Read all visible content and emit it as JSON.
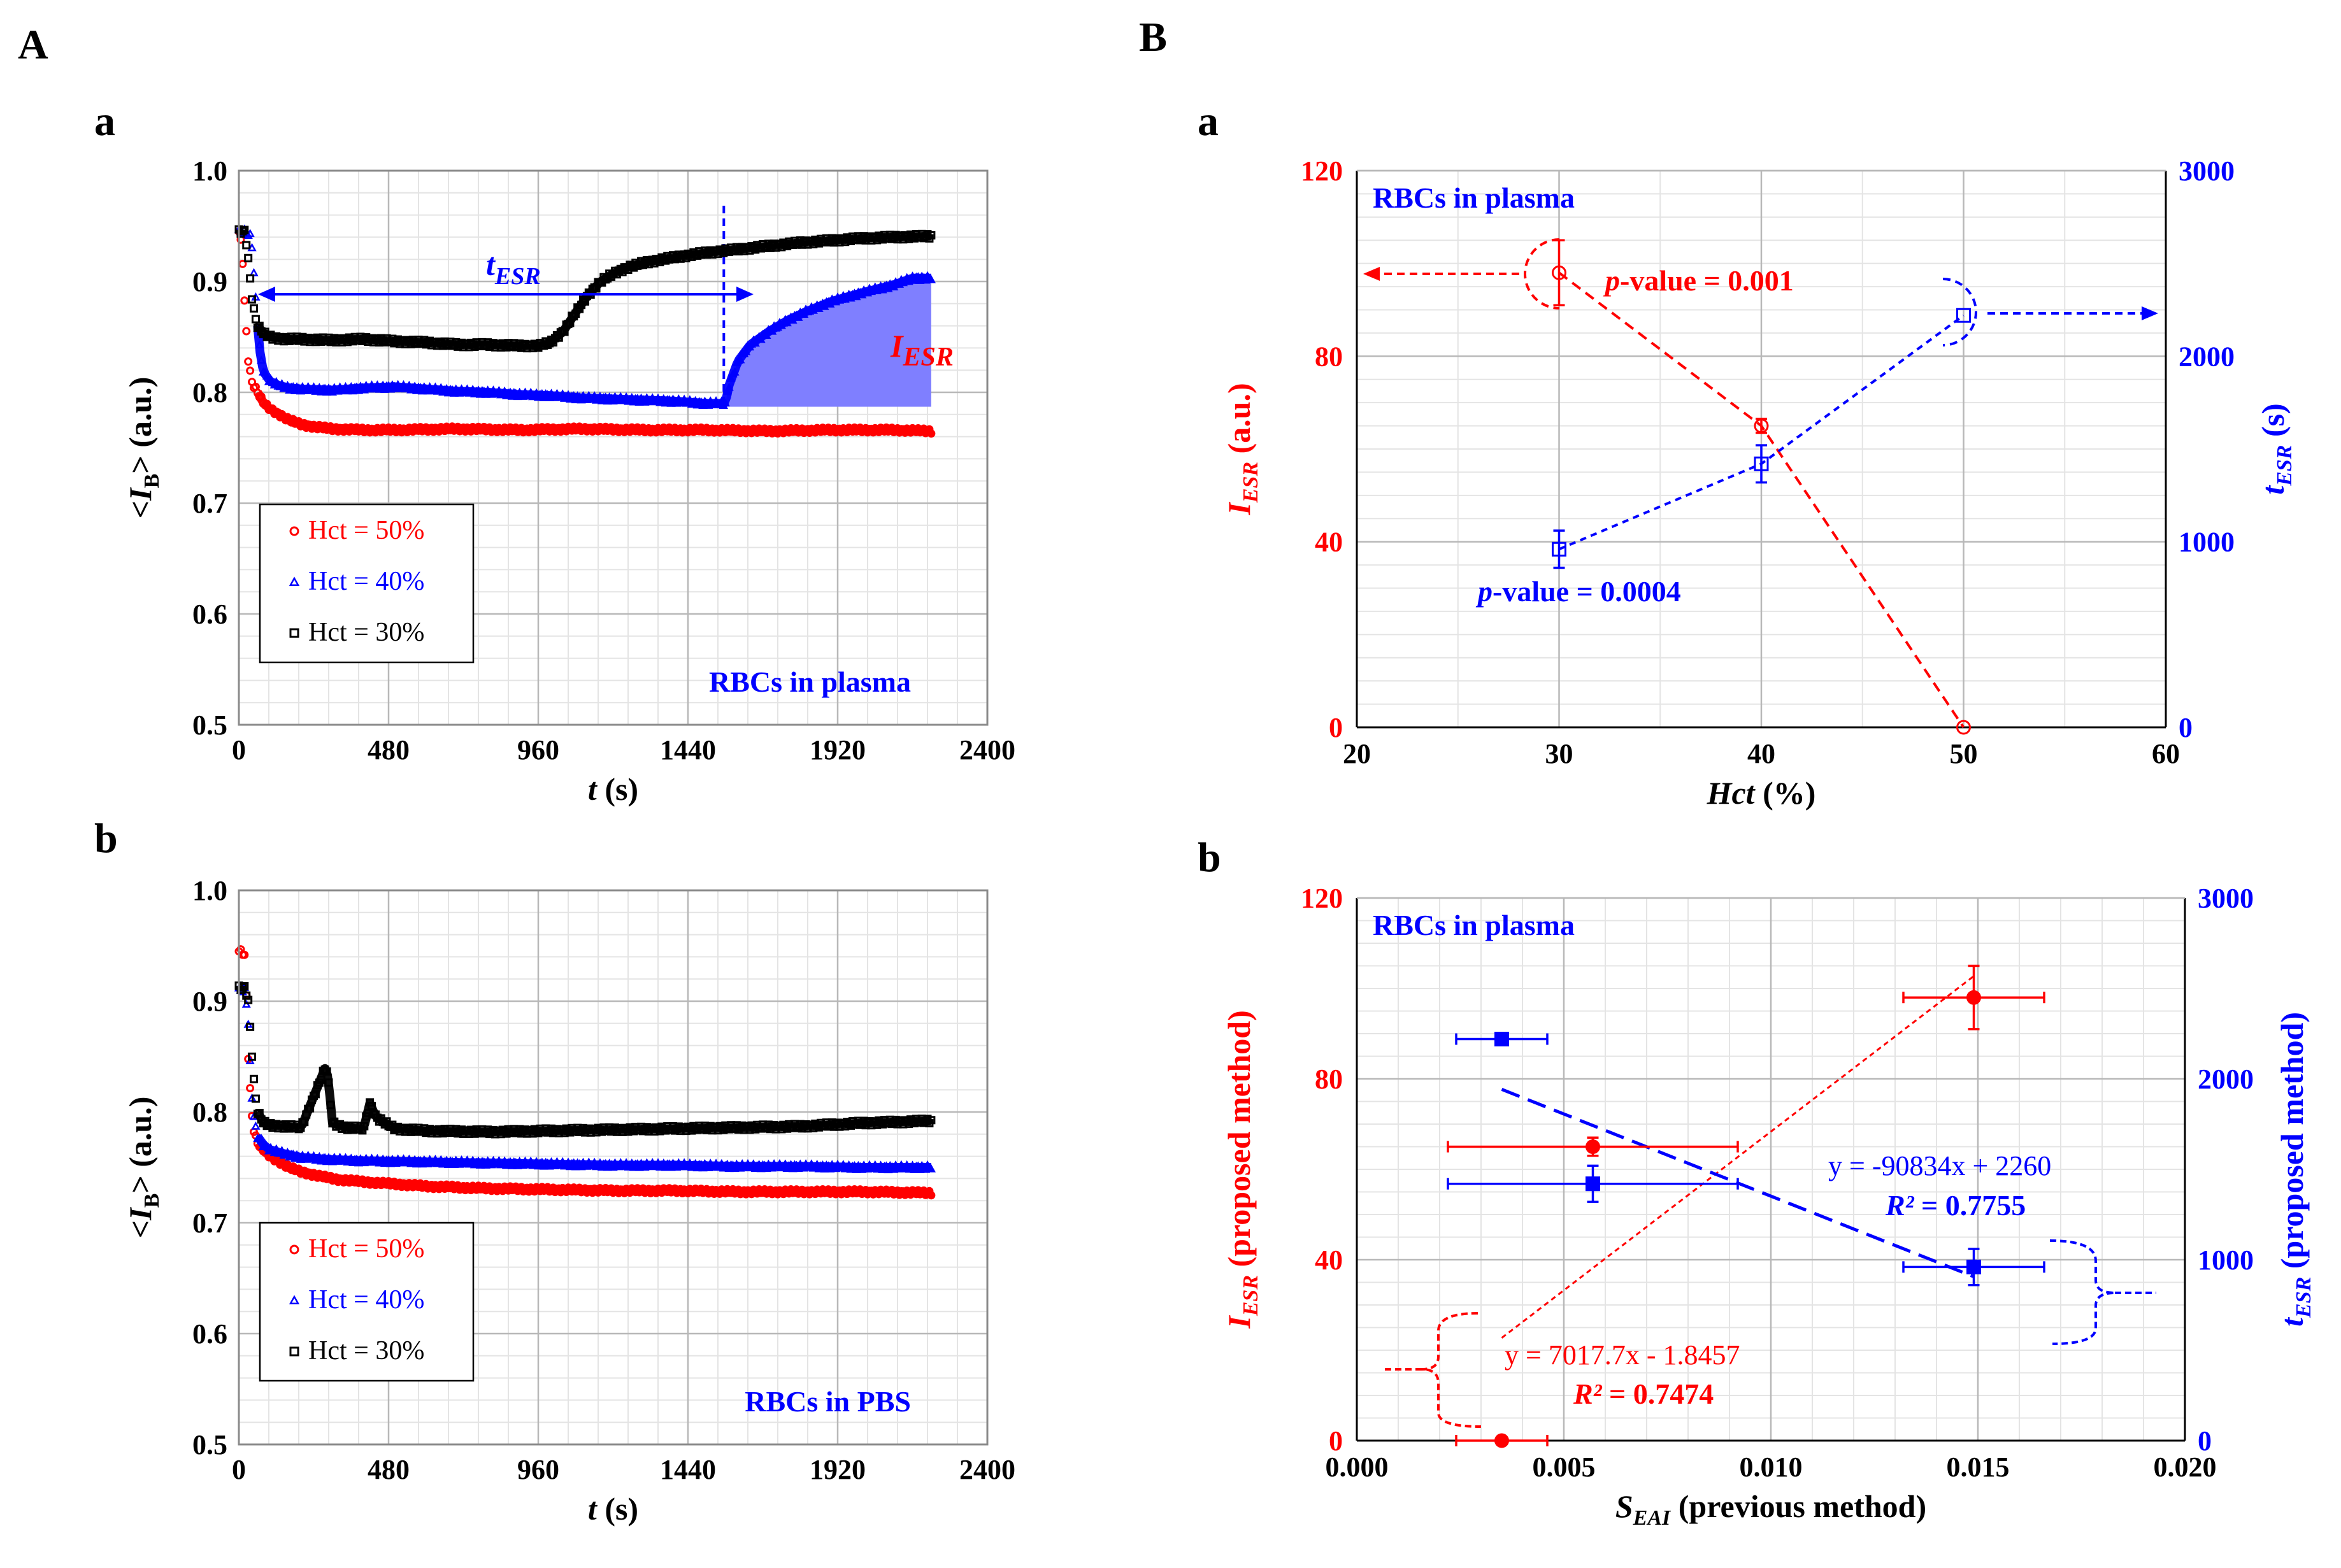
{
  "panel_labels": {
    "A": "A",
    "B": "B",
    "Aa": "a",
    "Ab": "b",
    "Ba": "a",
    "Bb": "b"
  },
  "annotations": {
    "t_esr": "t",
    "t_esr_sub": "ESR",
    "i_esr": "I",
    "i_esr_sub": "ESR",
    "p_italic": "p",
    "p_value_red": "-value = 0.001",
    "p_value_blue": "-value = 0.0004",
    "eq_blue": "y = -90834x + 2260",
    "r2_blue_label": "R²",
    "r2_blue_value": " = 0.7755",
    "eq_red": "y = 7017.7x - 1.8457",
    "r2_red_label": "R²",
    "r2_red_value": " = 0.7474"
  },
  "colors": {
    "red": "#ff0000",
    "blue": "#0000ff",
    "black": "#000000",
    "fill": "#7f7fff"
  },
  "chart_data": [
    {
      "id": "Aa",
      "type": "scatter",
      "xlabel_italic": "t",
      "xlabel_rest": " (s)",
      "ylabel_pre": "<",
      "ylabel_italic": "I",
      "ylabel_sub": "B",
      "ylabel_post": "> (a.u.)",
      "xlim": [
        0,
        2400
      ],
      "ylim": [
        0.5,
        1.0
      ],
      "xticks": [
        "0",
        "480",
        "960",
        "1440",
        "1920",
        "2400"
      ],
      "yticks": [
        "0.5",
        "0.6",
        "0.7",
        "0.8",
        "0.9",
        "1.0"
      ],
      "corner_label": "RBCs in plasma",
      "legend": [
        "Hct = 50%",
        "Hct = 40%",
        "Hct = 30%"
      ],
      "series": [
        {
          "name": "Hct = 50%",
          "marker": "circle",
          "color": "#ff0000",
          "x": [
            0,
            10,
            20,
            30,
            40,
            50,
            60,
            80,
            100,
            130,
            160,
            200,
            240,
            300,
            400,
            500,
            700,
            900,
            1100,
            1300,
            1500,
            1700,
            1900,
            2100,
            2220
          ],
          "y": [
            0.945,
            0.93,
            0.87,
            0.83,
            0.81,
            0.805,
            0.8,
            0.79,
            0.785,
            0.78,
            0.775,
            0.771,
            0.769,
            0.767,
            0.766,
            0.766,
            0.767,
            0.766,
            0.767,
            0.766,
            0.766,
            0.765,
            0.766,
            0.766,
            0.765
          ]
        },
        {
          "name": "Hct = 40%",
          "marker": "triangle",
          "color": "#0000ff",
          "x": [
            0,
            20,
            40,
            50,
            60,
            70,
            80,
            100,
            130,
            160,
            200,
            300,
            400,
            500,
            600,
            700,
            800,
            900,
            1000,
            1100,
            1200,
            1300,
            1400,
            1500,
            1560,
            1570,
            1600,
            1640,
            1700,
            1760,
            1820,
            1900,
            2000,
            2100,
            2160,
            2220
          ],
          "y": [
            0.945,
            0.945,
            0.94,
            0.9,
            0.86,
            0.83,
            0.818,
            0.81,
            0.806,
            0.804,
            0.803,
            0.802,
            0.804,
            0.805,
            0.803,
            0.801,
            0.8,
            0.798,
            0.797,
            0.795,
            0.794,
            0.793,
            0.792,
            0.79,
            0.79,
            0.805,
            0.828,
            0.843,
            0.855,
            0.865,
            0.873,
            0.882,
            0.89,
            0.897,
            0.903,
            0.903
          ]
        },
        {
          "name": "Hct = 30%",
          "marker": "square",
          "color": "#000000",
          "x": [
            0,
            20,
            30,
            40,
            50,
            60,
            80,
            100,
            120,
            150,
            200,
            300,
            400,
            500,
            600,
            700,
            800,
            900,
            960,
            1000,
            1040,
            1080,
            1120,
            1160,
            1200,
            1240,
            1300,
            1400,
            1500,
            1600,
            1700,
            1800,
            1900,
            2000,
            2100,
            2220
          ],
          "y": [
            0.945,
            0.945,
            0.92,
            0.89,
            0.87,
            0.86,
            0.853,
            0.85,
            0.849,
            0.848,
            0.848,
            0.847,
            0.848,
            0.846,
            0.845,
            0.843,
            0.843,
            0.842,
            0.842,
            0.845,
            0.855,
            0.872,
            0.888,
            0.9,
            0.907,
            0.912,
            0.917,
            0.922,
            0.926,
            0.929,
            0.932,
            0.935,
            0.937,
            0.939,
            0.94,
            0.941
          ]
        }
      ]
    },
    {
      "id": "Ab",
      "type": "scatter",
      "xlabel_italic": "t",
      "xlabel_rest": " (s)",
      "ylabel_pre": "<",
      "ylabel_italic": "I",
      "ylabel_sub": "B",
      "ylabel_post": "> (a.u.)",
      "xlim": [
        0,
        2400
      ],
      "ylim": [
        0.5,
        1.0
      ],
      "xticks": [
        "0",
        "480",
        "960",
        "1440",
        "1920",
        "2400"
      ],
      "yticks": [
        "0.5",
        "0.6",
        "0.7",
        "0.8",
        "0.9",
        "1.0"
      ],
      "corner_label": "RBCs in PBS",
      "legend": [
        "Hct = 50%",
        "Hct = 40%",
        "Hct = 30%"
      ],
      "series": [
        {
          "name": "Hct = 50%",
          "marker": "circle",
          "color": "#ff0000",
          "x": [
            0,
            10,
            20,
            30,
            40,
            50,
            60,
            80,
            100,
            130,
            160,
            200,
            260,
            320,
            400,
            500,
            600,
            800,
            1000,
            1200,
            1400,
            1600,
            1800,
            2000,
            2220
          ],
          "y": [
            0.945,
            0.945,
            0.94,
            0.85,
            0.8,
            0.78,
            0.772,
            0.765,
            0.76,
            0.755,
            0.75,
            0.746,
            0.742,
            0.739,
            0.737,
            0.735,
            0.733,
            0.731,
            0.73,
            0.729,
            0.729,
            0.728,
            0.728,
            0.728,
            0.727
          ]
        },
        {
          "name": "Hct = 40%",
          "marker": "triangle",
          "color": "#0000ff",
          "x": [
            0,
            20,
            30,
            40,
            50,
            60,
            80,
            100,
            150,
            200,
            300,
            400,
            600,
            800,
            1000,
            1200,
            1400,
            1600,
            1800,
            2000,
            2220
          ],
          "y": [
            0.91,
            0.91,
            0.88,
            0.82,
            0.79,
            0.778,
            0.77,
            0.766,
            0.762,
            0.759,
            0.757,
            0.756,
            0.755,
            0.754,
            0.753,
            0.752,
            0.752,
            0.751,
            0.751,
            0.75,
            0.75
          ]
        },
        {
          "name": "Hct = 30%",
          "marker": "square",
          "color": "#000000",
          "x": [
            0,
            20,
            30,
            40,
            50,
            60,
            80,
            100,
            150,
            200,
            280,
            290,
            300,
            340,
            400,
            420,
            440,
            500,
            600,
            800,
            1000,
            1200,
            1400,
            1600,
            1800,
            2000,
            2220
          ],
          "y": [
            0.912,
            0.912,
            0.9,
            0.86,
            0.82,
            0.8,
            0.79,
            0.788,
            0.787,
            0.786,
            0.842,
            0.82,
            0.79,
            0.786,
            0.785,
            0.808,
            0.795,
            0.785,
            0.783,
            0.782,
            0.783,
            0.784,
            0.785,
            0.786,
            0.787,
            0.79,
            0.792
          ]
        }
      ]
    },
    {
      "id": "Ba",
      "type": "line",
      "xlabel_italic": "Hct",
      "xlabel_rest": " (%)",
      "ylabel_left_italic": "I",
      "ylabel_left_sub": "ESR",
      "ylabel_left_rest": " (a.u.)",
      "ylabel_right_italic": "t",
      "ylabel_right_sub": "ESR",
      "ylabel_right_rest": " (s)",
      "xlim": [
        20,
        60
      ],
      "ylim": [
        0,
        120
      ],
      "y2lim": [
        0,
        3000
      ],
      "xticks": [
        "20",
        "30",
        "40",
        "50",
        "60"
      ],
      "yticks": [
        "0",
        "40",
        "80",
        "120"
      ],
      "y2ticks": [
        "0",
        "1000",
        "2000",
        "3000"
      ],
      "corner_label": "RBCs in plasma",
      "series": [
        {
          "name": "I_ESR",
          "axis": "left",
          "color": "#ff0000",
          "marker": "circle",
          "x": [
            30,
            40,
            50
          ],
          "y": [
            98,
            65,
            0
          ],
          "yerr": [
            7,
            1.5,
            0
          ]
        },
        {
          "name": "t_ESR",
          "axis": "right",
          "color": "#0000ff",
          "marker": "square",
          "x": [
            30,
            40,
            50
          ],
          "y": [
            960,
            1420,
            2220
          ],
          "yerr": [
            100,
            100,
            0
          ]
        }
      ]
    },
    {
      "id": "Bb",
      "type": "scatter",
      "xlabel_italic": "S",
      "xlabel_sub": "EAI",
      "xlabel_rest": " (previous method)",
      "ylabel_left_italic": "I",
      "ylabel_left_sub": "ESR",
      "ylabel_left_rest": " (proposed method)",
      "ylabel_right_italic": "t",
      "ylabel_right_sub": "ESR",
      "ylabel_right_rest": " (proposed method)",
      "xlim": [
        0,
        0.02
      ],
      "ylim": [
        0,
        120
      ],
      "y2lim": [
        0,
        3000
      ],
      "xticks": [
        "0.000",
        "0.005",
        "0.010",
        "0.015",
        "0.020"
      ],
      "yticks": [
        "0",
        "40",
        "80",
        "120"
      ],
      "y2ticks": [
        "0",
        "1000",
        "2000",
        "3000"
      ],
      "corner_label": "RBCs in plasma",
      "series": [
        {
          "name": "I_ESR",
          "axis": "left",
          "color": "#ff0000",
          "marker": "circle",
          "x": [
            0.0035,
            0.0057,
            0.0149
          ],
          "y": [
            0,
            65,
            98
          ],
          "xerr": [
            0.0011,
            0.0035,
            0.0017
          ],
          "yerr": [
            0,
            2,
            7
          ]
        },
        {
          "name": "t_ESR",
          "axis": "right",
          "color": "#0000ff",
          "marker": "square",
          "x": [
            0.0035,
            0.0057,
            0.0149
          ],
          "y": [
            2220,
            1420,
            960
          ],
          "xerr": [
            0.0011,
            0.0035,
            0.0017
          ],
          "yerr": [
            0,
            100,
            100
          ]
        }
      ],
      "trendlines": [
        {
          "axis": "left",
          "color": "#ff0000",
          "slope": 7017.7,
          "intercept": -1.8457,
          "x": [
            0.0035,
            0.0149
          ]
        },
        {
          "axis": "right",
          "color": "#0000ff",
          "slope": -90834,
          "intercept": 2260,
          "x": [
            0.0035,
            0.0149
          ]
        }
      ]
    }
  ]
}
